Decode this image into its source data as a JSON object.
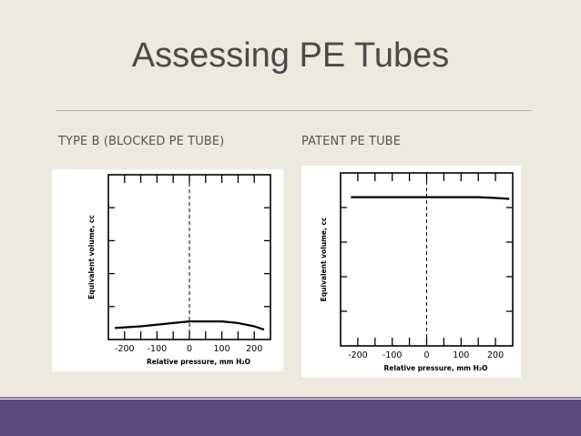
{
  "slide": {
    "title": "Assessing PE Tubes",
    "left_caption": "TYPE B (BLOCKED PE TUBE)",
    "right_caption": "PATENT PE TUBE"
  },
  "colors": {
    "background": "#ede9dc",
    "footer": "#5e4a7f",
    "title_text": "#4a4a4a"
  },
  "chart_data": [
    {
      "type": "line",
      "xlabel": "Relative pressure, mm H₂O",
      "ylabel": "Equivalent volume, cc",
      "xlim": [
        -250,
        250
      ],
      "ylim": [
        0,
        10
      ],
      "x_ticks": [
        -200,
        -100,
        0,
        100,
        200
      ],
      "x_tick_labels": [
        "-200",
        "-100",
        "0",
        "100",
        "200"
      ],
      "series": [
        {
          "x": [
            -230,
            -150,
            -50,
            0,
            50,
            100,
            150,
            200,
            230
          ],
          "y": [
            0.7,
            0.8,
            1.0,
            1.1,
            1.1,
            1.1,
            1.0,
            0.8,
            0.6
          ]
        }
      ]
    },
    {
      "type": "line",
      "xlabel": "Relative pressure, mm H₂O",
      "ylabel": "Equivalent volume, cc",
      "xlim": [
        -250,
        250
      ],
      "ylim": [
        0,
        10
      ],
      "x_ticks": [
        -200,
        -100,
        0,
        100,
        200
      ],
      "x_tick_labels": [
        "-200",
        "-100",
        "0",
        "100",
        "200"
      ],
      "series": [
        {
          "x": [
            -220,
            -150,
            -50,
            0,
            50,
            100,
            150,
            200,
            240
          ],
          "y": [
            8.6,
            8.6,
            8.6,
            8.6,
            8.6,
            8.6,
            8.6,
            8.55,
            8.5
          ]
        }
      ]
    }
  ]
}
